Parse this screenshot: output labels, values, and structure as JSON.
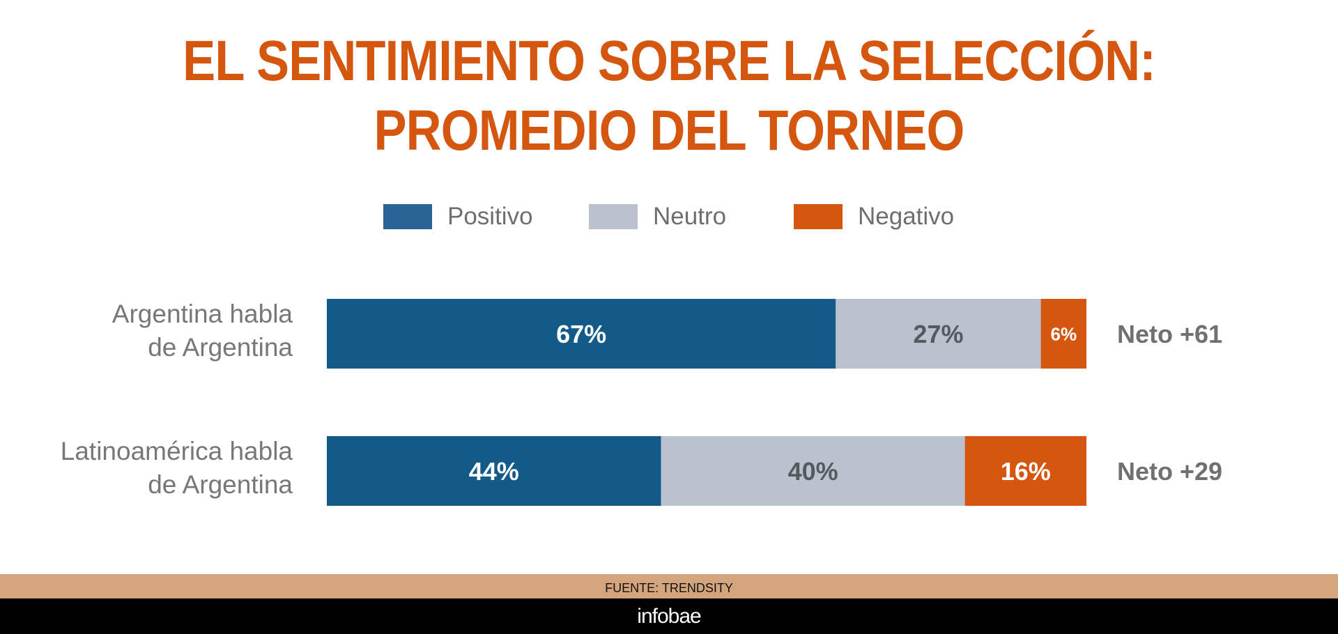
{
  "title": {
    "line1": "EL SENTIMIENTO SOBRE LA SELECCIÓN:",
    "line2": "PROMEDIO DEL TORNEO"
  },
  "colors": {
    "title": "#d4560f",
    "positivo": "#135a88",
    "positivo_legend": "#2a6496",
    "neutro": "#bac3cd",
    "negativo": "#d4560f",
    "label": "#777777",
    "neto": "#707070"
  },
  "legend": [
    {
      "label": "Positivo",
      "color": "#2a6496"
    },
    {
      "label": "Neutro",
      "color": "#bac3cd"
    },
    {
      "label": "Negativo",
      "color": "#d4560f"
    }
  ],
  "chart_data": {
    "type": "bar",
    "orientation": "horizontal",
    "stacked": true,
    "title": "EL SENTIMIENTO SOBRE LA SELECCIÓN: PROMEDIO DEL TORNEO",
    "categories": [
      [
        "Argentina habla",
        "de Argentina"
      ],
      [
        "Latinoamérica habla",
        "de Argentina"
      ]
    ],
    "series": [
      {
        "name": "Positivo",
        "values": [
          67,
          44
        ],
        "labels": [
          "67%",
          "44%"
        ]
      },
      {
        "name": "Neutro",
        "values": [
          27,
          40
        ],
        "labels": [
          "27%",
          "40%"
        ]
      },
      {
        "name": "Negativo",
        "values": [
          6,
          16
        ],
        "labels": [
          "6%",
          "16%"
        ]
      }
    ],
    "net_labels": [
      "Neto +61",
      "Neto +29"
    ],
    "xlim": [
      0,
      100
    ],
    "legend_position": "top-center",
    "grid": false
  },
  "footer": {
    "source": "FUENTE: TRENDSITY",
    "brand": "infobae"
  }
}
